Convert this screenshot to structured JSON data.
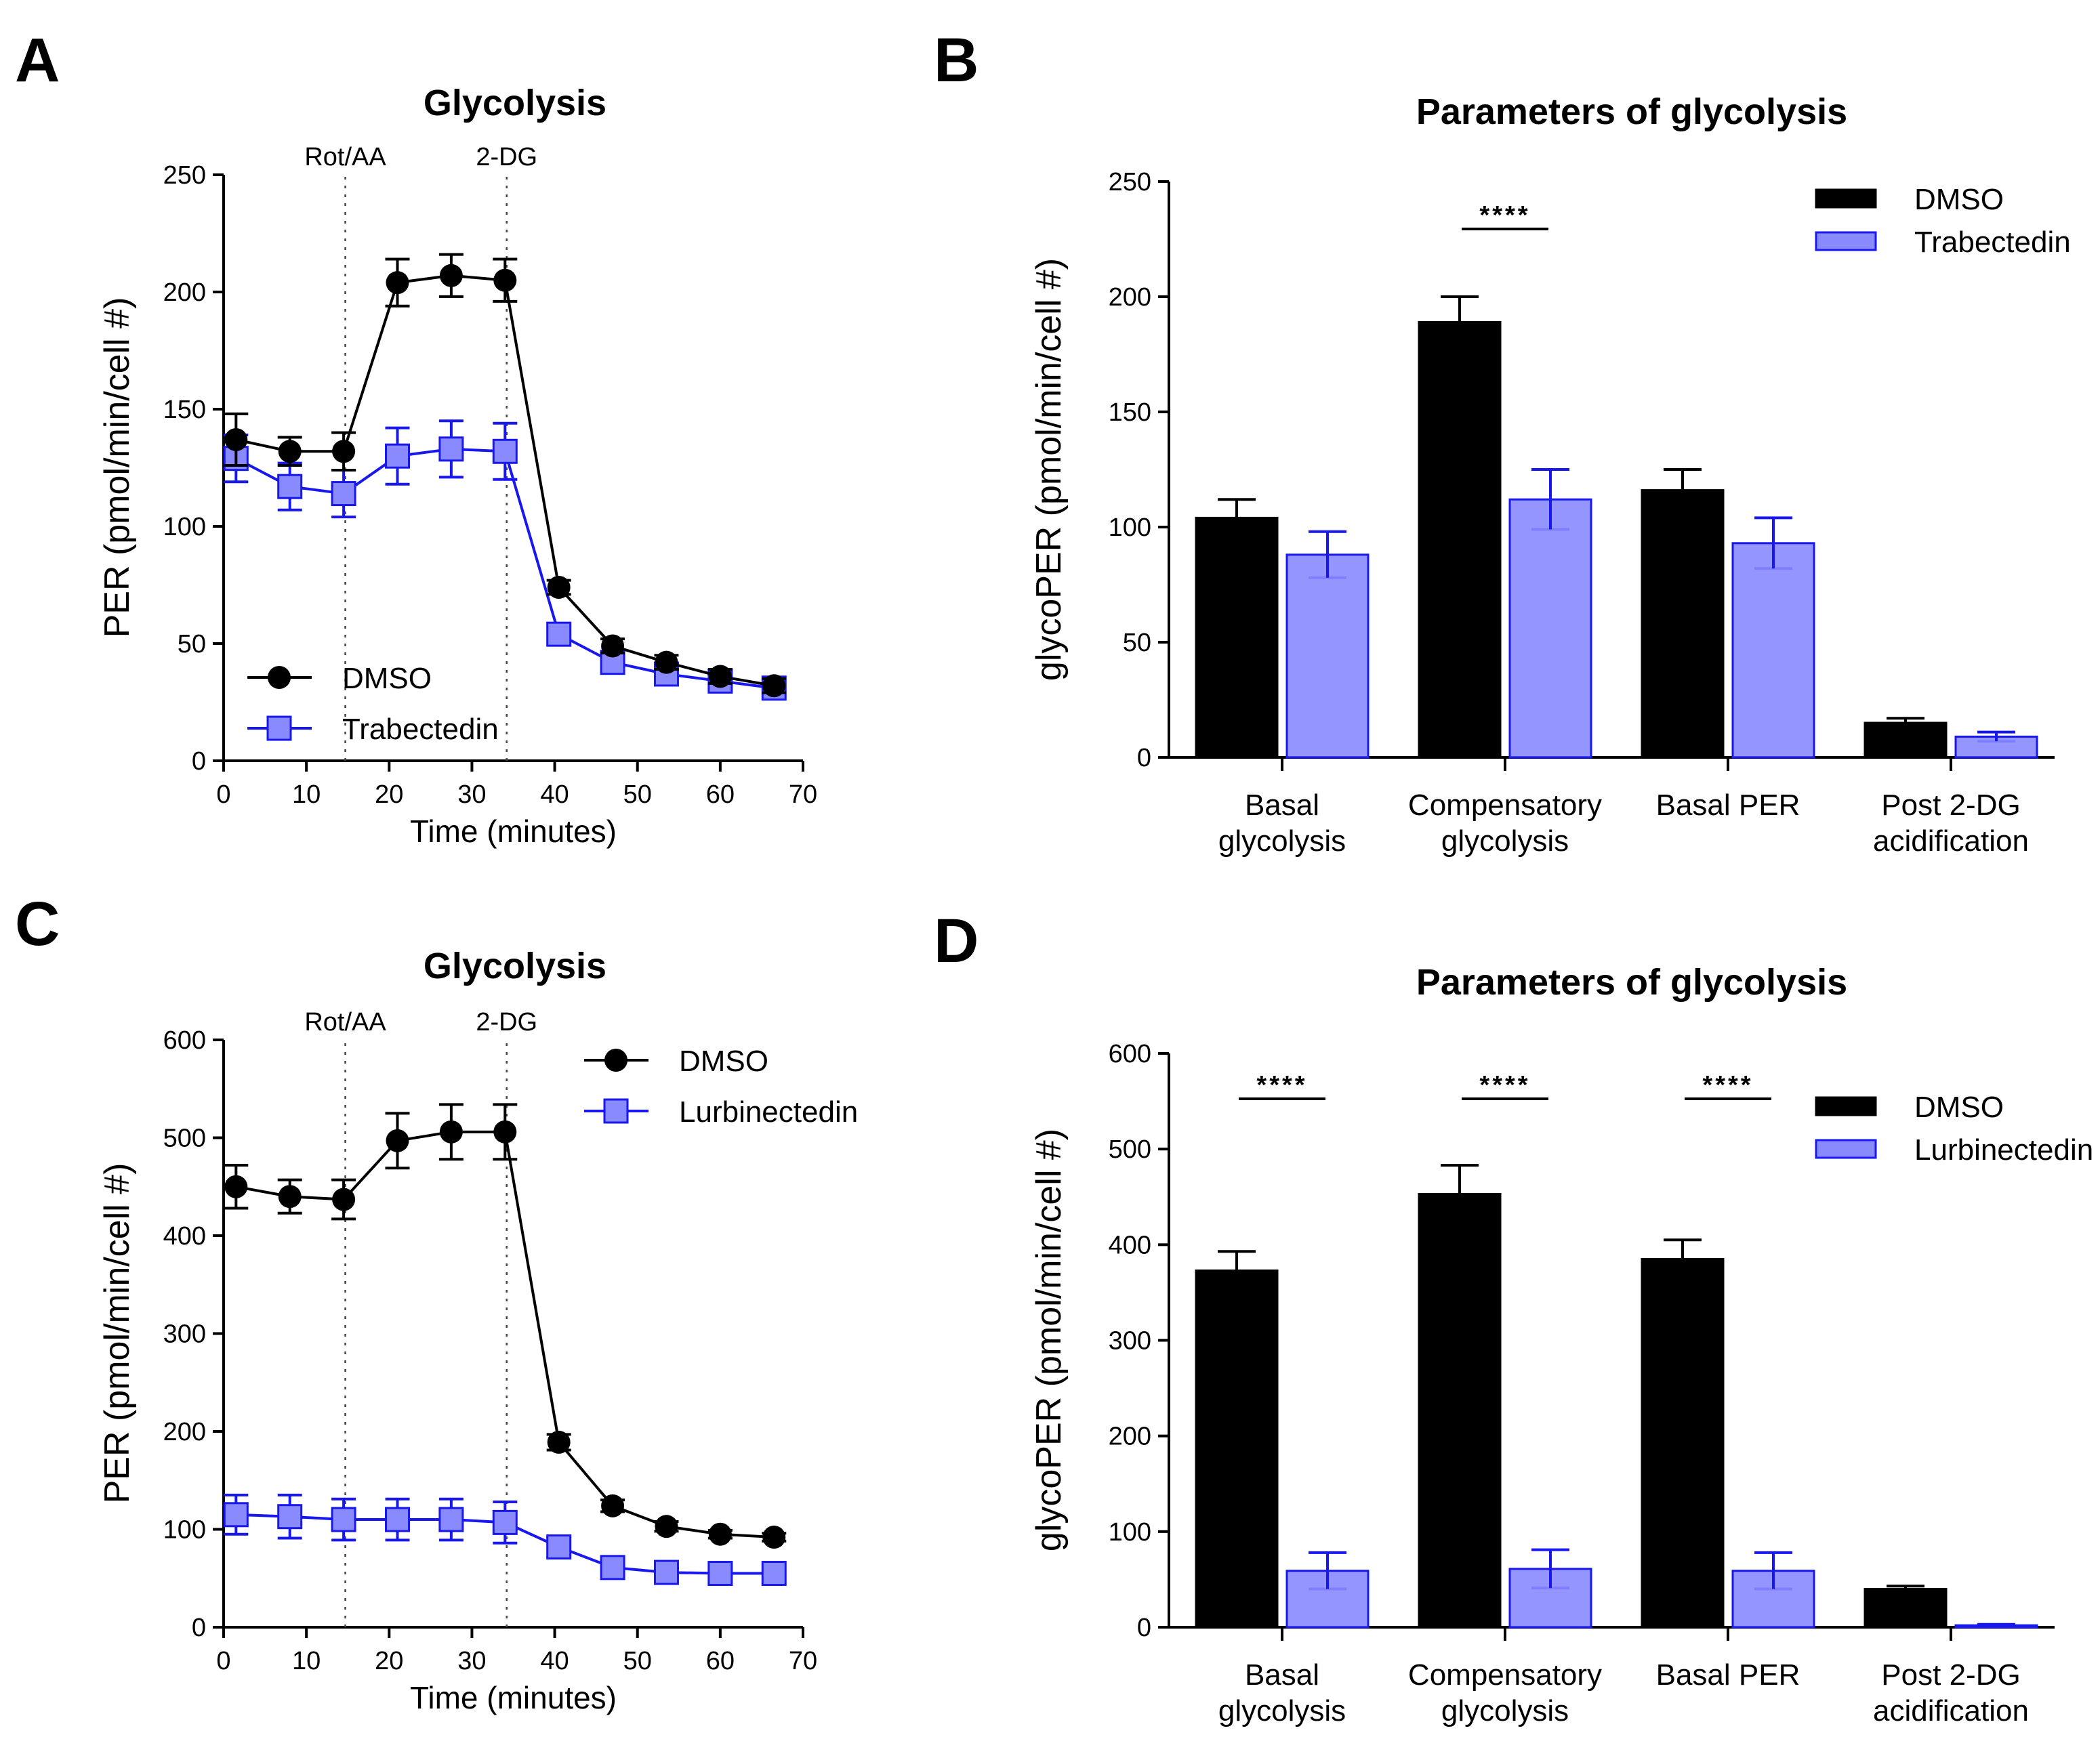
{
  "colors": {
    "dmso": "#000000",
    "treated_fill": "#8a8aff",
    "treated_line": "#1818ee"
  },
  "chart_data": [
    {
      "panel": "A",
      "type": "line",
      "title": "Glycolysis",
      "xlabel": "Time (minutes)",
      "ylabel": "PER (pmol/min/cell #)",
      "xlim": [
        0,
        70
      ],
      "ylim": [
        0,
        250
      ],
      "xticks": [
        "0",
        "10",
        "20",
        "30",
        "40",
        "50",
        "60",
        "70"
      ],
      "yticks": [
        "0",
        "50",
        "100",
        "150",
        "200",
        "250"
      ],
      "injections": [
        {
          "label": "Rot/AA",
          "x": 14.7
        },
        {
          "label": "2-DG",
          "x": 34.2
        }
      ],
      "x": [
        1.5,
        8,
        14.5,
        21,
        27.5,
        34,
        40.5,
        47,
        53.5,
        60,
        66.5
      ],
      "series": [
        {
          "name": "DMSO",
          "marker": "circle",
          "values": [
            137,
            132,
            132,
            204,
            207,
            205,
            74,
            49,
            42,
            36,
            32
          ],
          "errors": [
            11,
            6,
            8,
            10,
            9,
            9,
            3,
            3,
            3,
            3,
            3
          ]
        },
        {
          "name": "Trabectedin",
          "marker": "square",
          "values": [
            129,
            117,
            114,
            130,
            133,
            132,
            54,
            42,
            37,
            34,
            31
          ],
          "errors": [
            10,
            10,
            10,
            12,
            12,
            12,
            4,
            4,
            3,
            3,
            3
          ]
        }
      ],
      "legend_position": "bottom-left"
    },
    {
      "panel": "B",
      "type": "bar",
      "title": "Parameters of glycolysis",
      "ylabel": "glycoPER (pmol/min/cell #)",
      "ylim": [
        0,
        250
      ],
      "yticks": [
        "0",
        "50",
        "100",
        "150",
        "200",
        "250"
      ],
      "categories": [
        [
          "Basal",
          "glycolysis"
        ],
        [
          "Compensatory",
          "glycolysis"
        ],
        [
          "Basal PER"
        ],
        [
          "Post 2-DG",
          "acidification"
        ]
      ],
      "series": [
        {
          "name": "DMSO",
          "values": [
            104,
            189,
            116,
            15
          ],
          "errors": [
            8,
            11,
            9,
            2
          ]
        },
        {
          "name": "Trabectedin",
          "values": [
            88,
            112,
            93,
            9
          ],
          "errors": [
            10,
            13,
            11,
            2
          ]
        }
      ],
      "significance": [
        {
          "category_index": 1,
          "label": "****"
        }
      ],
      "legend_position": "top-right"
    },
    {
      "panel": "C",
      "type": "line",
      "title": "Glycolysis",
      "xlabel": "Time (minutes)",
      "ylabel": "PER (pmol/min/cell #)",
      "xlim": [
        0,
        70
      ],
      "ylim": [
        0,
        600
      ],
      "xticks": [
        "0",
        "10",
        "20",
        "30",
        "40",
        "50",
        "60",
        "70"
      ],
      "yticks": [
        "0",
        "100",
        "200",
        "300",
        "400",
        "500",
        "600"
      ],
      "injections": [
        {
          "label": "Rot/AA",
          "x": 14.7
        },
        {
          "label": "2-DG",
          "x": 34.2
        }
      ],
      "x": [
        1.5,
        8,
        14.5,
        21,
        27.5,
        34,
        40.5,
        47,
        53.5,
        60,
        66.5
      ],
      "series": [
        {
          "name": "DMSO",
          "marker": "circle",
          "values": [
            450,
            440,
            437,
            497,
            506,
            506,
            189,
            124,
            103,
            95,
            92
          ],
          "errors": [
            22,
            17,
            20,
            28,
            28,
            28,
            8,
            6,
            5,
            4,
            4
          ]
        },
        {
          "name": "Lurbinectedin",
          "marker": "square",
          "values": [
            115,
            113,
            110,
            110,
            110,
            107,
            82,
            61,
            56,
            55,
            55
          ],
          "errors": [
            20,
            22,
            21,
            21,
            21,
            21,
            6,
            5,
            4,
            4,
            4
          ]
        }
      ],
      "legend_position": "top-right"
    },
    {
      "panel": "D",
      "type": "bar",
      "title": "Parameters of glycolysis",
      "ylabel": "glycoPER (pmol/min/cell #)",
      "ylim": [
        0,
        600
      ],
      "yticks": [
        "0",
        "100",
        "200",
        "300",
        "400",
        "500",
        "600"
      ],
      "categories": [
        [
          "Basal",
          "glycolysis"
        ],
        [
          "Compensatory",
          "glycolysis"
        ],
        [
          "Basal PER"
        ],
        [
          "Post 2-DG",
          "acidification"
        ]
      ],
      "series": [
        {
          "name": "DMSO",
          "values": [
            373,
            453,
            385,
            40
          ],
          "errors": [
            20,
            30,
            20,
            3
          ]
        },
        {
          "name": "Lurbinectedin",
          "values": [
            59,
            61,
            59,
            2
          ],
          "errors": [
            19,
            20,
            19,
            1
          ]
        }
      ],
      "significance": [
        {
          "category_index": 0,
          "label": "****"
        },
        {
          "category_index": 1,
          "label": "****"
        },
        {
          "category_index": 2,
          "label": "****"
        }
      ],
      "legend_position": "top-right"
    }
  ]
}
